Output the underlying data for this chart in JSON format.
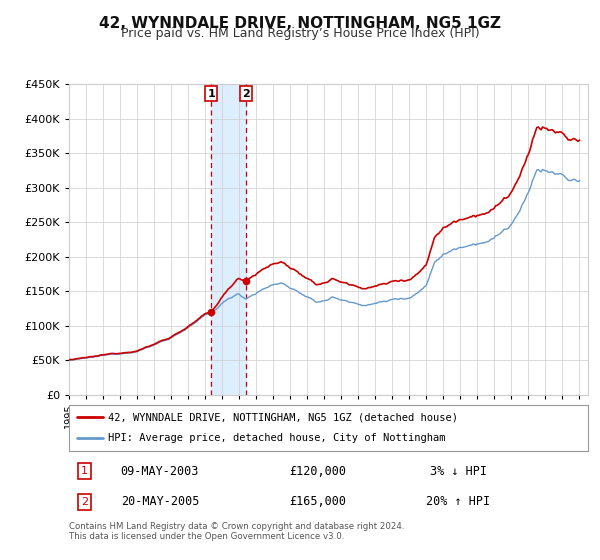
{
  "title": "42, WYNNDALE DRIVE, NOTTINGHAM, NG5 1GZ",
  "subtitle": "Price paid vs. HM Land Registry’s House Price Index (HPI)",
  "ylim": [
    0,
    450000
  ],
  "xlim_start": 1995.0,
  "xlim_end": 2025.5,
  "yticks": [
    0,
    50000,
    100000,
    150000,
    200000,
    250000,
    300000,
    350000,
    400000,
    450000
  ],
  "ytick_labels": [
    "£0",
    "£50K",
    "£100K",
    "£150K",
    "£200K",
    "£250K",
    "£300K",
    "£350K",
    "£400K",
    "£450K"
  ],
  "xticks": [
    1995,
    1996,
    1997,
    1998,
    1999,
    2000,
    2001,
    2002,
    2003,
    2004,
    2005,
    2006,
    2007,
    2008,
    2009,
    2010,
    2011,
    2012,
    2013,
    2014,
    2015,
    2016,
    2017,
    2018,
    2019,
    2020,
    2021,
    2022,
    2023,
    2024,
    2025
  ],
  "transaction1_date": 2003.36,
  "transaction1_price": 120000,
  "transaction1_date_str": "09-MAY-2003",
  "transaction1_hpi_rel": "3% ↓ HPI",
  "transaction2_date": 2005.38,
  "transaction2_price": 165000,
  "transaction2_date_str": "20-MAY-2005",
  "transaction2_hpi_rel": "20% ↑ HPI",
  "red_color": "#cc0000",
  "blue_color": "#6699cc",
  "shading_color": "#ddeeff",
  "grid_color": "#cccccc",
  "background_color": "#ffffff",
  "legend_line1": "42, WYNNDALE DRIVE, NOTTINGHAM, NG5 1GZ (detached house)",
  "legend_line2": "HPI: Average price, detached house, City of Nottingham",
  "footer": "Contains HM Land Registry data © Crown copyright and database right 2024.\nThis data is licensed under the Open Government Licence v3.0.",
  "title_fontsize": 11,
  "subtitle_fontsize": 9
}
